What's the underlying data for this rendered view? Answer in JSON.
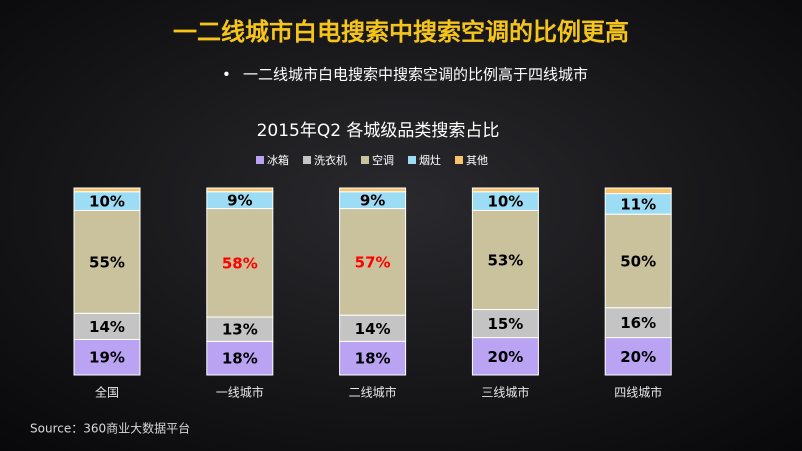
{
  "title": "一二线城市白电搜索中搜索空调的比例更高",
  "bullet": "一二线城市白电搜索中搜索空调的比例高于四线城市",
  "source": "Source：360商业大数据平台",
  "chart_data": {
    "type": "stacked_bar",
    "title": "2015年Q2 各城级品类搜索占比",
    "categories": [
      "全国",
      "一线城市",
      "二线城市",
      "三线城市",
      "四线城市"
    ],
    "series": [
      {
        "name": "冰箱",
        "color": "#b9a3f2",
        "values": [
          19,
          18,
          18,
          20,
          20
        ],
        "value_labels": [
          "19%",
          "18%",
          "18%",
          "20%",
          "20%"
        ]
      },
      {
        "name": "洗衣机",
        "color": "#c4c4c4",
        "values": [
          14,
          13,
          14,
          15,
          16
        ],
        "value_labels": [
          "14%",
          "13%",
          "14%",
          "15%",
          "16%"
        ]
      },
      {
        "name": "空调",
        "color": "#c9c29c",
        "values": [
          55,
          58,
          57,
          53,
          50
        ],
        "value_labels": [
          "55%",
          "58%",
          "57%",
          "53%",
          "50%"
        ],
        "value_label_colors": [
          "#000000",
          "#ff0000",
          "#ff0000",
          "#000000",
          "#000000"
        ]
      },
      {
        "name": "烟灶",
        "color": "#9ddcf5",
        "values": [
          10,
          9,
          9,
          10,
          11
        ],
        "value_labels": [
          "10%",
          "9%",
          "9%",
          "10%",
          "11%"
        ]
      },
      {
        "name": "其他",
        "color": "#f7c46c",
        "values": [
          2,
          2,
          2,
          2,
          3
        ]
      }
    ]
  }
}
